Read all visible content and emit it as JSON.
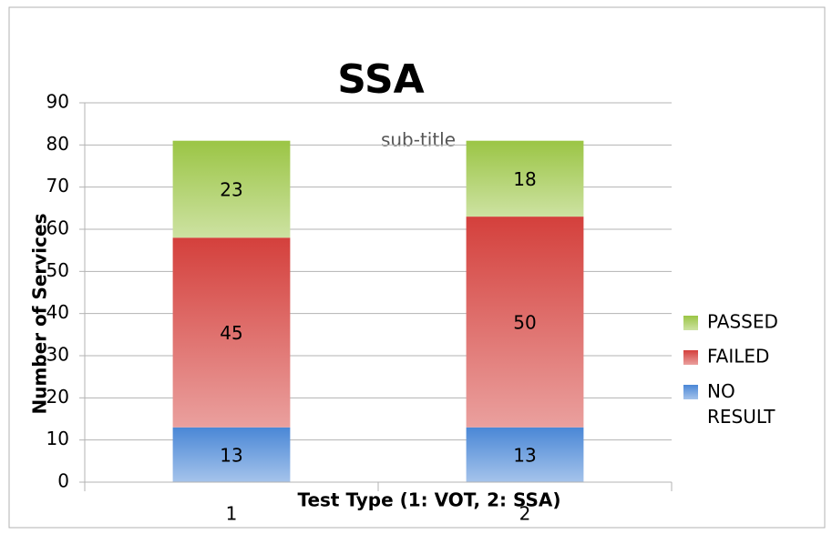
{
  "chart_data": {
    "type": "bar",
    "stacked": true,
    "title": "SSA",
    "subtitle": "sub-title",
    "x_label": "Test Type (1: VOT, 2: SSA)",
    "y_label": "Number of Services",
    "categories": [
      "1",
      "2"
    ],
    "series": [
      {
        "name": "NO RESULT",
        "color": "#4a87d6",
        "values": [
          13,
          13
        ]
      },
      {
        "name": "FAILED",
        "color": "#d4403c",
        "values": [
          45,
          50
        ]
      },
      {
        "name": "PASSED",
        "color": "#9bc545",
        "values": [
          23,
          18
        ]
      }
    ],
    "ylim": [
      0,
      90
    ],
    "yticks": [
      0,
      10,
      20,
      30,
      40,
      50,
      60,
      70,
      80,
      90
    ],
    "grid": true,
    "legend": "right"
  }
}
